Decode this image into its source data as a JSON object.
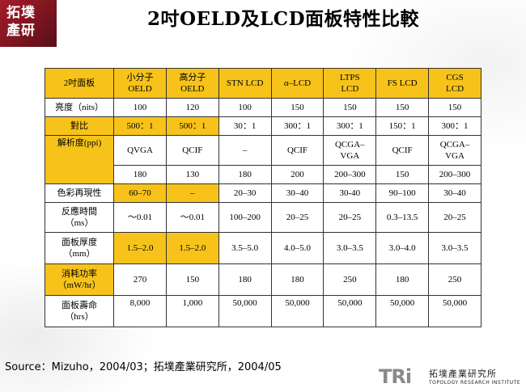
{
  "logo": {
    "text_line1": "拓墣",
    "text_line2": "產研"
  },
  "title": "2吋OELD及LCD面板特性比較",
  "table": {
    "header": [
      "2吋面板",
      "小分子\nOELD",
      "高分子\nOELD",
      "STN LCD",
      "α–LCD",
      "LTPS\nLCD",
      "FS LCD",
      "CGS\nLCD"
    ],
    "rows": {
      "brightness": {
        "label": "亮度（nits）",
        "cells": [
          "100",
          "120",
          "100",
          "150",
          "150",
          "150",
          "150"
        ]
      },
      "contrast": {
        "label": "對比",
        "cells": [
          "500：1",
          "500：1",
          "30：1",
          "300：1",
          "300：1",
          "150：1",
          "300：1"
        ]
      },
      "resolution": {
        "label": "解析度(ppi)",
        "cells": [
          "QVGA",
          "QCIF",
          "–",
          "QCIF",
          "QCGA–\nVGA",
          "QCIF",
          "QCGA–\nVGA"
        ]
      },
      "ppi": {
        "cells": [
          "180",
          "130",
          "180",
          "200",
          "200–300",
          "150",
          "200–300"
        ]
      },
      "color": {
        "label": "色彩再現性",
        "cells": [
          "60–70",
          "–",
          "20–30",
          "30–40",
          "30-40",
          "90–100",
          "30–40"
        ]
      },
      "response": {
        "label": "反應時間\n（ms）",
        "cells": [
          "～0.01",
          "～0.01",
          "100–200",
          "20–25",
          "20–25",
          "0.3–13.5",
          "20–25"
        ]
      },
      "thickness": {
        "label": "面板厚度\n（mm）",
        "cells": [
          "1.5–2.0",
          "1.5–2.0",
          "3.5–5.0",
          "4.0–5.0",
          "3.0–3.5",
          "3.0–4.0",
          "3.0–3.5"
        ]
      },
      "power": {
        "label": "消耗功率\n（mW/hr）",
        "cells": [
          "270",
          "150",
          "180",
          "180",
          "250",
          "180",
          "250"
        ]
      },
      "lifetime": {
        "label": "面板壽命\n（hrs）",
        "cells": [
          "8,000",
          "1,000",
          "50,000",
          "50,000",
          "50,000",
          "50,000",
          "50,000"
        ]
      }
    }
  },
  "source": "Source：Mizuho，2004/03；拓墣產業研究所，2004/05",
  "footer_logo": {
    "mark": "TRi",
    "chinese": "拓墣產業研究所",
    "english": "TOPOLOGY RESEARCH INSTITUTE"
  },
  "colors": {
    "highlight": "#f7c31a",
    "logo_red": "#a51c2a"
  }
}
